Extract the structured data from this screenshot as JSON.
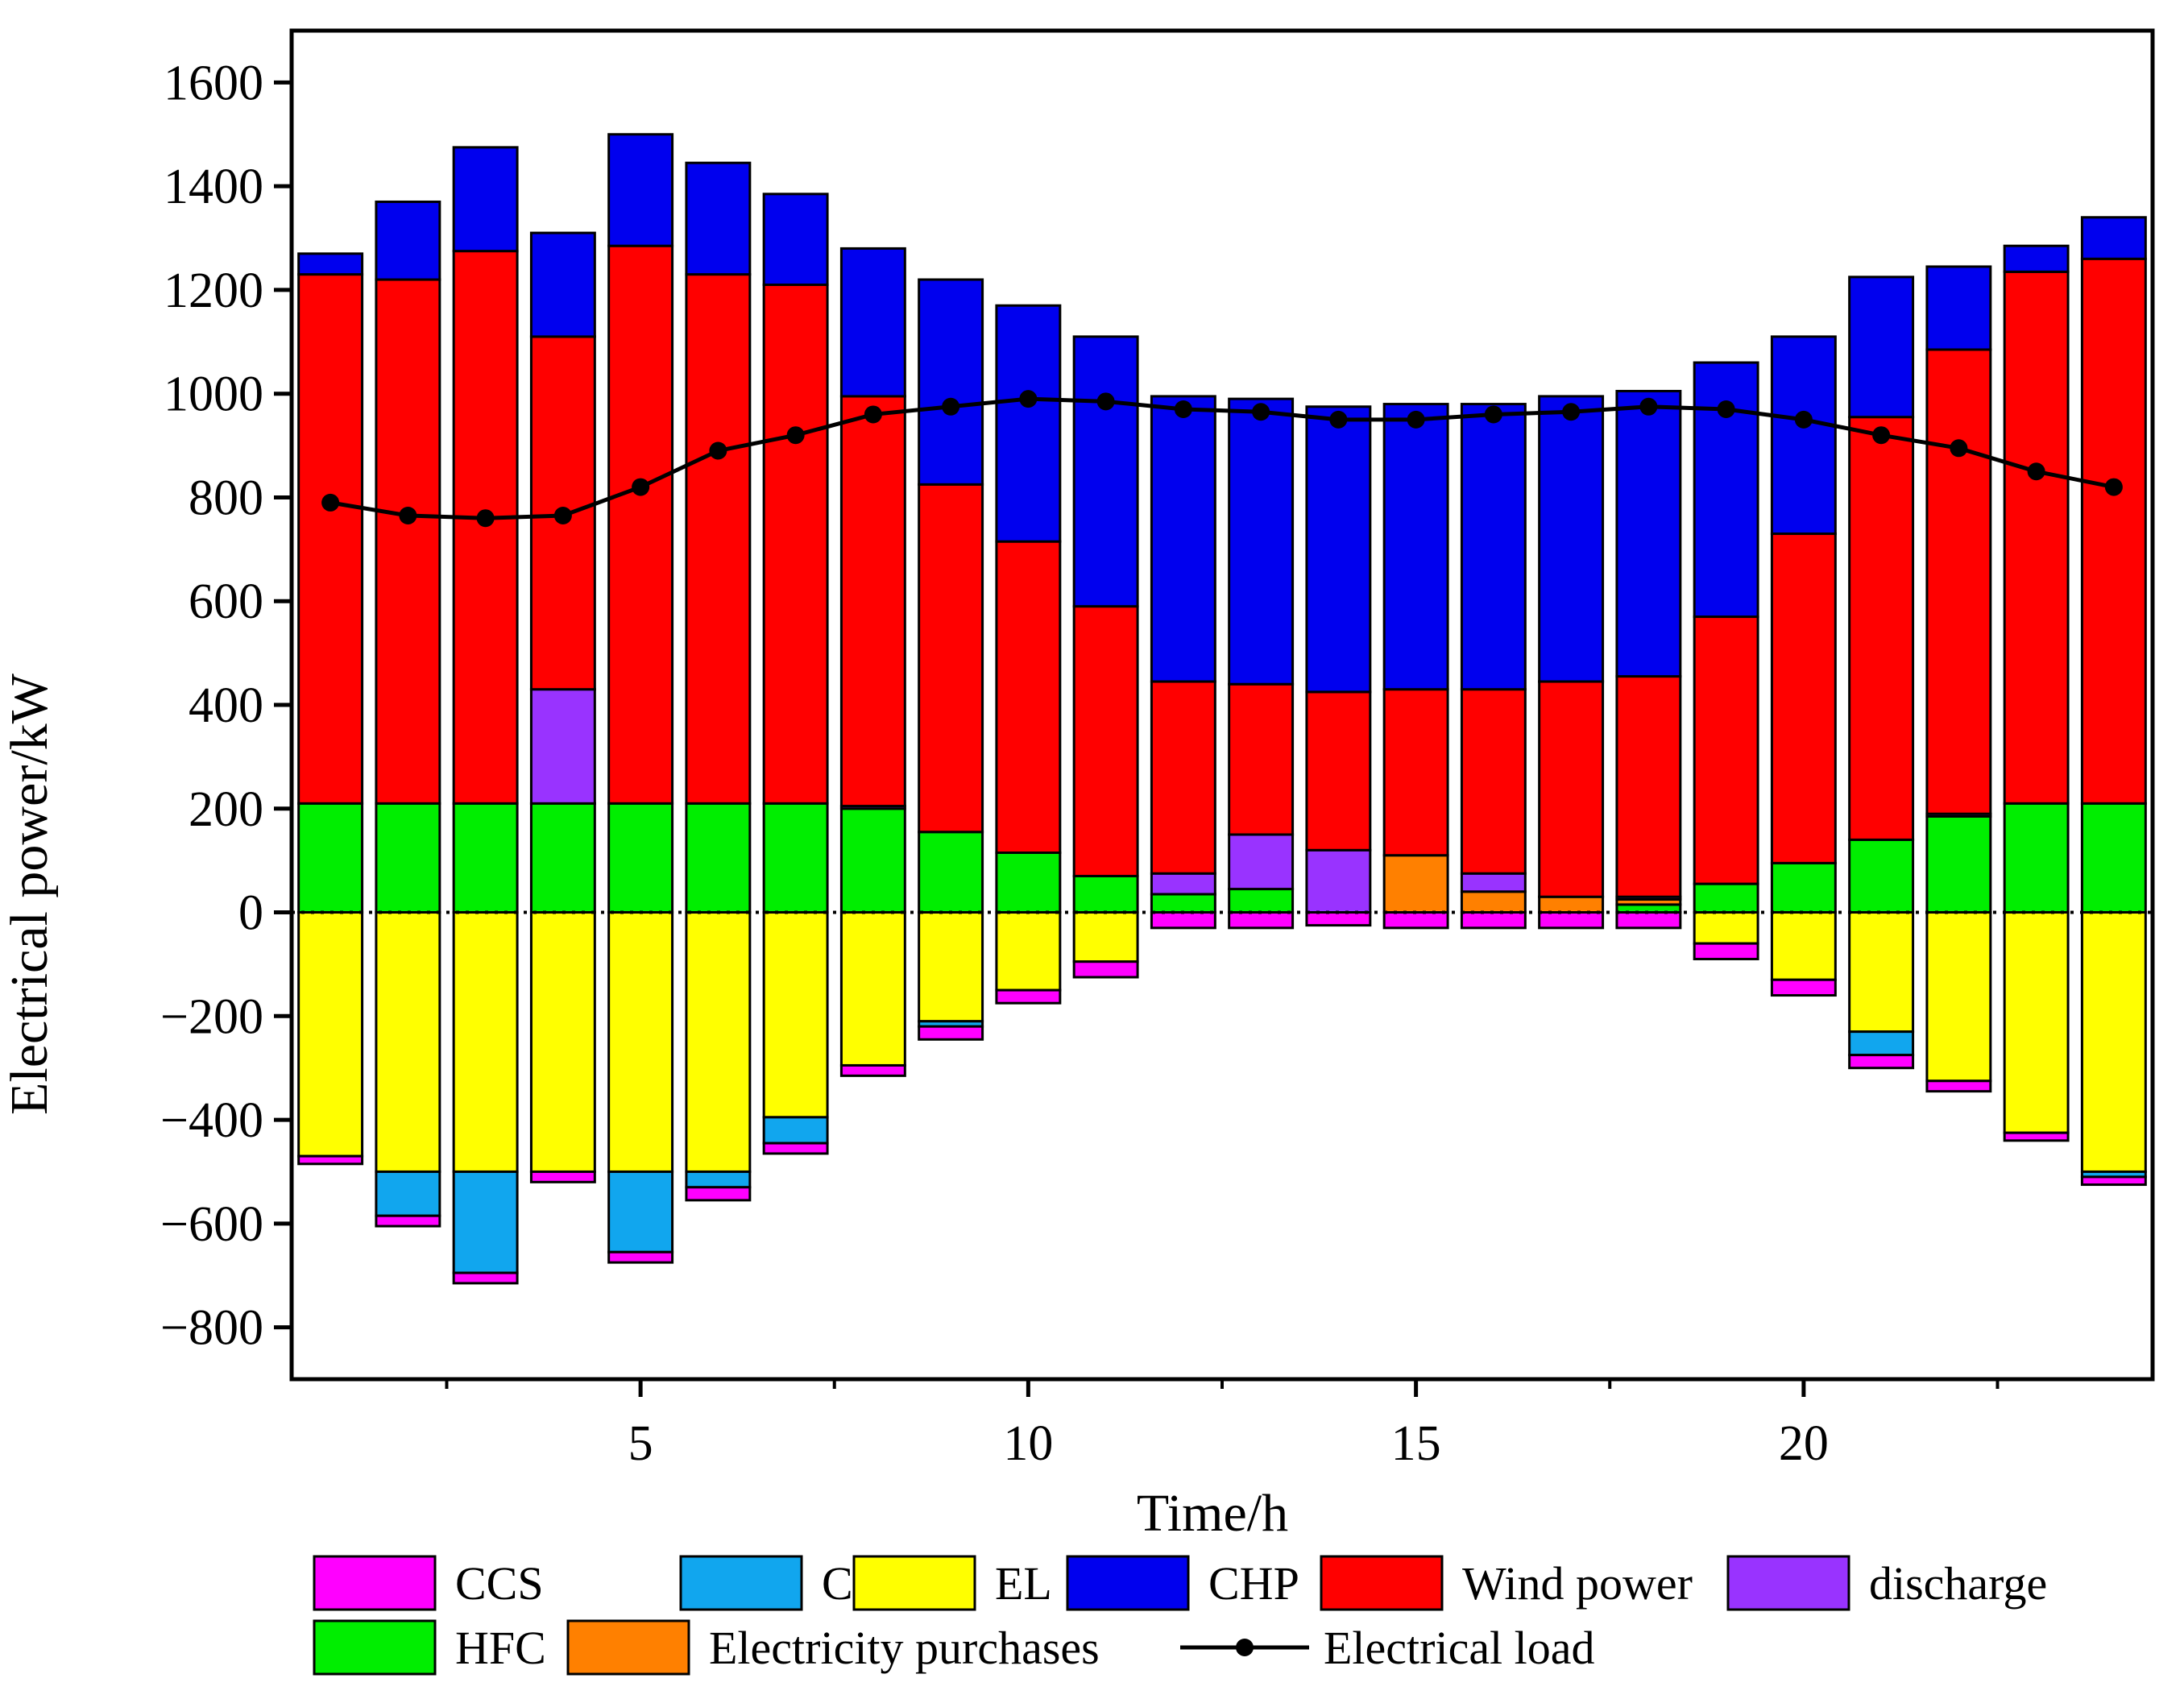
{
  "chart_data": {
    "type": "bar",
    "subtype": "stacked-bar-with-line",
    "title": "",
    "xlabel": "Time/h",
    "ylabel": "Electrical power/kW",
    "xlim": [
      0.5,
      24.5
    ],
    "ylim": [
      -900,
      1700
    ],
    "x_ticks": [
      5,
      10,
      15,
      20
    ],
    "y_ticks": [
      -800,
      -600,
      -400,
      -200,
      0,
      200,
      400,
      600,
      800,
      1000,
      1200,
      1400,
      1600
    ],
    "x": [
      1,
      2,
      3,
      4,
      5,
      6,
      7,
      8,
      9,
      10,
      11,
      12,
      13,
      14,
      15,
      16,
      17,
      18,
      19,
      20,
      21,
      22,
      23,
      24
    ],
    "positive_series": [
      {
        "name": "HFC",
        "color": "#00ee00",
        "values": [
          210,
          210,
          210,
          210,
          210,
          210,
          210,
          200,
          155,
          115,
          70,
          35,
          45,
          0,
          0,
          0,
          0,
          15,
          55,
          95,
          140,
          185,
          210,
          210
        ]
      },
      {
        "name": "Electricity purchases",
        "color": "#ff8000",
        "values": [
          0,
          0,
          0,
          0,
          0,
          0,
          0,
          0,
          0,
          0,
          0,
          0,
          0,
          0,
          110,
          40,
          30,
          10,
          0,
          0,
          0,
          0,
          0,
          0
        ]
      },
      {
        "name": "discharge",
        "color": "#9933ff",
        "values": [
          0,
          0,
          0,
          220,
          0,
          0,
          0,
          5,
          0,
          0,
          0,
          40,
          105,
          120,
          0,
          35,
          0,
          5,
          0,
          0,
          0,
          5,
          0,
          0
        ]
      },
      {
        "name": "Wind power",
        "color": "#ff0000",
        "values": [
          1020,
          1010,
          1065,
          680,
          1075,
          1020,
          1000,
          790,
          670,
          600,
          520,
          370,
          290,
          305,
          320,
          355,
          415,
          425,
          515,
          635,
          815,
          895,
          1025,
          1050
        ]
      },
      {
        "name": "CHP",
        "color": "#0000ee",
        "values": [
          40,
          150,
          200,
          200,
          215,
          215,
          175,
          285,
          395,
          455,
          520,
          550,
          550,
          550,
          550,
          550,
          550,
          550,
          490,
          380,
          270,
          160,
          50,
          80
        ]
      }
    ],
    "negative_series": [
      {
        "name": "EL",
        "color": "#ffff00",
        "values": [
          -470,
          -500,
          -500,
          -500,
          -500,
          -500,
          -395,
          -295,
          -210,
          -150,
          -95,
          0,
          0,
          0,
          0,
          0,
          0,
          0,
          -60,
          -130,
          -230,
          -325,
          -425,
          -500
        ]
      },
      {
        "name": "Charge",
        "color": "#11a6ee",
        "values": [
          0,
          -85,
          -195,
          0,
          -155,
          -30,
          -50,
          0,
          -10,
          0,
          0,
          0,
          0,
          0,
          0,
          0,
          0,
          0,
          0,
          0,
          -45,
          0,
          0,
          -10
        ]
      },
      {
        "name": "CCS",
        "color": "#ff00ff",
        "values": [
          -15,
          -20,
          -20,
          -20,
          -20,
          -25,
          -20,
          -20,
          -25,
          -25,
          -30,
          -30,
          -30,
          -25,
          -30,
          -30,
          -30,
          -30,
          -30,
          -30,
          -25,
          -20,
          -15,
          -15
        ]
      }
    ],
    "line_series": {
      "name": "Electrical load",
      "color": "#000000",
      "values": [
        790,
        765,
        760,
        765,
        820,
        890,
        920,
        960,
        975,
        990,
        985,
        970,
        965,
        950,
        950,
        960,
        965,
        975,
        970,
        950,
        920,
        895,
        850,
        820
      ]
    },
    "legend": {
      "placement": "bottom",
      "rows": [
        [
          {
            "label": "CCS",
            "type": "patch",
            "color": "#ff00ff"
          },
          {
            "label": "Charge",
            "type": "patch",
            "color": "#11a6ee"
          },
          {
            "label": "EL",
            "type": "patch",
            "color": "#ffff00"
          },
          {
            "label": "CHP",
            "type": "patch",
            "color": "#0000ee"
          },
          {
            "label": "Wind power",
            "type": "patch",
            "color": "#ff0000"
          },
          {
            "label": "discharge",
            "type": "patch",
            "color": "#9933ff"
          }
        ],
        [
          {
            "label": "HFC",
            "type": "patch",
            "color": "#00ee00"
          },
          {
            "label": "Electricity purchases",
            "type": "patch",
            "color": "#ff8000"
          },
          {
            "label": "Electrical load",
            "type": "line",
            "color": "#000000"
          }
        ]
      ]
    },
    "zero_line": "dotted"
  }
}
